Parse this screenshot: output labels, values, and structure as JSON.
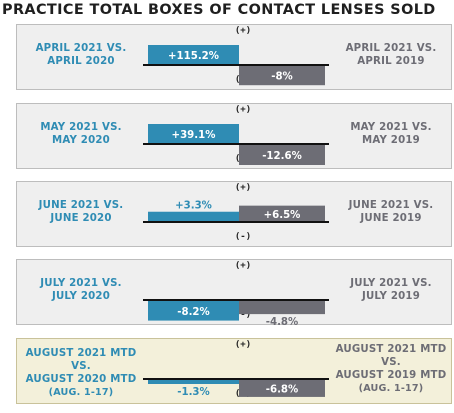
{
  "title": "PRACTICE TOTAL BOXES OF CONTACT LENSES SOLD",
  "colors": {
    "left_bar": "#2f8cb4",
    "right_bar": "#6d6d75",
    "highlight_bg": "#f3f0da",
    "panel_bg": "#efefef"
  },
  "axis_markers": {
    "plus": "(+)",
    "minus": "(-)"
  },
  "panels": [
    {
      "left_label": [
        "APRIL 2021 VS.",
        "APRIL 2020"
      ],
      "right_label": [
        "APRIL 2021 VS.",
        "APRIL 2019"
      ],
      "left_note": "",
      "right_note": "",
      "left_text": "+115.2%",
      "right_text": "-8%",
      "highlight": false
    },
    {
      "left_label": [
        "MAY 2021 VS.",
        "MAY 2020"
      ],
      "right_label": [
        "MAY 2021 VS.",
        "MAY 2019"
      ],
      "left_note": "",
      "right_note": "",
      "left_text": "+39.1%",
      "right_text": "-12.6%",
      "highlight": false
    },
    {
      "left_label": [
        "JUNE 2021 VS.",
        "JUNE 2020"
      ],
      "right_label": [
        "JUNE 2021 VS.",
        "JUNE 2019"
      ],
      "left_note": "",
      "right_note": "",
      "left_text": "+3.3%",
      "right_text": "+6.5%",
      "highlight": false
    },
    {
      "left_label": [
        "JULY 2021 VS.",
        "JULY 2020"
      ],
      "right_label": [
        "JULY 2021 VS.",
        "JULY 2019"
      ],
      "left_note": "",
      "right_note": "",
      "left_text": "-8.2%",
      "right_text": "-4.8%",
      "highlight": false
    },
    {
      "left_label": [
        "AUGUST 2021 MTD VS.",
        "AUGUST 2020 MTD"
      ],
      "right_label": [
        "AUGUST 2021 MTD VS.",
        "AUGUST 2019 MTD"
      ],
      "left_note": "(AUG. 1-17)",
      "right_note": "(AUG. 1-17)",
      "left_text": "-1.3%",
      "right_text": "-6.8%",
      "highlight": true
    }
  ],
  "chart_data": {
    "type": "bar",
    "title": "PRACTICE TOTAL BOXES OF CONTACT LENSES SOLD",
    "categories": [
      "April 2021",
      "May 2021",
      "June 2021",
      "July 2021",
      "August 2021 MTD"
    ],
    "series": [
      {
        "name": "vs. 2020",
        "values": [
          115.2,
          39.1,
          3.3,
          -8.2,
          -1.3
        ]
      },
      {
        "name": "vs. 2019",
        "values": [
          -8,
          -12.6,
          6.5,
          -4.8,
          -6.8
        ]
      }
    ]
  }
}
